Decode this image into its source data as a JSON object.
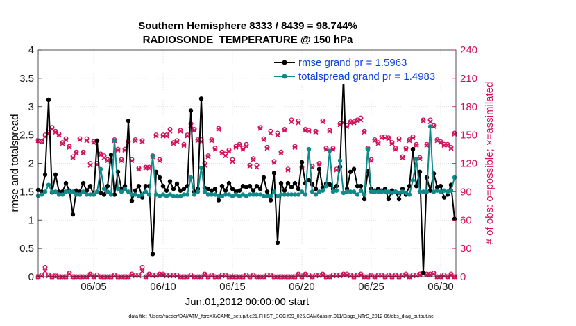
{
  "chart_data": {
    "type": "line",
    "title_line1": "Southern Hemisphere 8333 / 8439 = 98.744%",
    "title_line2": "RADIOSONDE_TEMPERATURE @ 150 hPa",
    "xlabel": "Jun.01,2012 00:00:00 start",
    "ylabel": "rmse and totalspread",
    "ylabel_right": "# of obs: o=possible; ×=assimilated",
    "footer": "data file: /Users/raeder/DAI/ATM_forcXX/CAM6_setup/f.e21.FHIST_BGC.f09_025.CAM6assim.011/Diags_NTrS_2012-06/obs_diag_output.nc",
    "xlim": [
      1.0,
      31.1
    ],
    "ylim": [
      0,
      4
    ],
    "ylim_right": [
      0,
      240
    ],
    "grid": true,
    "legend_position": "top-right",
    "x_ticks": [
      {
        "value": 5,
        "label": "06/05"
      },
      {
        "value": 10,
        "label": "06/10"
      },
      {
        "value": 15,
        "label": "06/15"
      },
      {
        "value": 20,
        "label": "06/20"
      },
      {
        "value": 25,
        "label": "06/25"
      },
      {
        "value": 30,
        "label": "06/30"
      }
    ],
    "y_ticks_left": [
      "0",
      "0.5",
      "1",
      "1.5",
      "2",
      "2.5",
      "3",
      "3.5",
      "4"
    ],
    "y_ticks_right": [
      "0",
      "30",
      "60",
      "90",
      "120",
      "150",
      "180",
      "210",
      "240"
    ],
    "colors": {
      "rmse": "#000000",
      "spread": "#0e8a8a",
      "obs": "#d0105a",
      "legend_text": "#0b3fe0"
    },
    "x": [
      1.0,
      1.25,
      1.5,
      1.75,
      2.0,
      2.25,
      2.5,
      2.75,
      3.0,
      3.25,
      3.5,
      3.75,
      4.0,
      4.25,
      4.5,
      4.75,
      5.0,
      5.25,
      5.5,
      5.75,
      6.0,
      6.25,
      6.5,
      6.75,
      7.0,
      7.25,
      7.5,
      7.75,
      8.0,
      8.25,
      8.5,
      8.75,
      9.0,
      9.25,
      9.5,
      9.75,
      10.0,
      10.25,
      10.5,
      10.75,
      11.0,
      11.25,
      11.5,
      11.75,
      12.0,
      12.25,
      12.5,
      12.75,
      13.0,
      13.25,
      13.5,
      13.75,
      14.0,
      14.25,
      14.5,
      14.75,
      15.0,
      15.25,
      15.5,
      15.75,
      16.0,
      16.25,
      16.5,
      16.75,
      17.0,
      17.25,
      17.5,
      17.75,
      18.0,
      18.25,
      18.5,
      18.75,
      19.0,
      19.25,
      19.5,
      19.75,
      20.0,
      20.25,
      20.5,
      20.75,
      21.0,
      21.25,
      21.5,
      21.75,
      22.0,
      22.25,
      22.5,
      22.75,
      23.0,
      23.25,
      23.5,
      23.75,
      24.0,
      24.25,
      24.5,
      24.75,
      25.0,
      25.25,
      25.5,
      25.75,
      26.0,
      26.25,
      26.5,
      26.75,
      27.0,
      27.25,
      27.5,
      27.75,
      28.0,
      28.25,
      28.5,
      28.75,
      29.0,
      29.25,
      29.5,
      29.75,
      30.0,
      30.25,
      30.5,
      30.75,
      31.0
    ],
    "series": [
      {
        "name": "rmse grand pr = 1.5963",
        "values": [
          1.53,
          1.5,
          1.8,
          3.12,
          1.49,
          1.8,
          1.5,
          1.5,
          1.65,
          1.52,
          1.1,
          1.52,
          1.5,
          1.65,
          1.52,
          1.6,
          1.45,
          2.4,
          1.48,
          1.45,
          1.6,
          2.15,
          1.45,
          1.85,
          1.55,
          1.6,
          2.75,
          1.34,
          1.52,
          1.6,
          1.4,
          1.6,
          1.6,
          0.4,
          1.85,
          1.75,
          1.6,
          1.52,
          1.68,
          1.55,
          1.64,
          1.52,
          1.55,
          1.6,
          2.93,
          1.5,
          1.55,
          3.14,
          1.57,
          1.55,
          1.52,
          1.55,
          1.35,
          1.6,
          1.52,
          1.65,
          1.55,
          1.5,
          1.52,
          1.6,
          1.58,
          1.6,
          1.52,
          1.6,
          1.55,
          1.75,
          1.5,
          1.35,
          1.83,
          0.6,
          1.65,
          1.52,
          1.65,
          1.58,
          1.65,
          1.55,
          2.02,
          1.65,
          1.7,
          1.63,
          1.55,
          1.9,
          1.57,
          1.64,
          1.63,
          1.55,
          1.6,
          1.94,
          3.53,
          1.55,
          1.85,
          1.9,
          1.6,
          1.6,
          1.37,
          1.86,
          1.55,
          1.52,
          1.55,
          1.52,
          1.55,
          1.37,
          1.52,
          1.5,
          1.37,
          1.55,
          1.45,
          1.6,
          2.25,
          1.6,
          1.85,
          0.07,
          1.75,
          1.52,
          1.82,
          1.58,
          1.6,
          1.4,
          1.45,
          1.62,
          1.02
        ]
      },
      {
        "name": "totalspread grand pr = 1.4983",
        "values": [
          1.43,
          1.45,
          1.5,
          1.62,
          1.5,
          1.5,
          1.45,
          1.45,
          1.5,
          1.5,
          1.5,
          1.45,
          1.45,
          1.5,
          1.45,
          1.45,
          1.45,
          1.5,
          1.9,
          1.55,
          1.5,
          1.45,
          2.4,
          1.55,
          1.5,
          1.55,
          1.5,
          1.45,
          1.45,
          1.42,
          1.45,
          1.5,
          1.45,
          2.13,
          1.45,
          1.42,
          1.45,
          1.42,
          1.45,
          1.42,
          1.42,
          1.42,
          1.45,
          1.45,
          1.75,
          1.45,
          1.5,
          1.92,
          1.5,
          1.45,
          1.45,
          1.45,
          1.42,
          1.42,
          1.45,
          1.45,
          1.42,
          1.45,
          1.42,
          1.45,
          1.42,
          1.45,
          1.45,
          1.45,
          1.45,
          1.42,
          1.42,
          1.42,
          1.5,
          1.42,
          1.45,
          1.45,
          1.45,
          1.45,
          1.45,
          1.45,
          1.5,
          1.45,
          2.25,
          1.5,
          1.45,
          1.5,
          1.52,
          1.6,
          2.22,
          1.5,
          1.52,
          2.05,
          1.48,
          1.5,
          1.5,
          1.5,
          1.45,
          1.52,
          1.45,
          2.25,
          1.5,
          1.5,
          1.5,
          1.5,
          1.5,
          1.5,
          1.48,
          1.5,
          1.48,
          1.5,
          1.48,
          1.45,
          1.7,
          2.08,
          1.5,
          1.5,
          1.5,
          2.65,
          1.5,
          1.52,
          1.5,
          1.52,
          1.5,
          1.52,
          1.75
        ]
      },
      {
        "name": "obs possible (o)",
        "axis": "right",
        "values": [
          144,
          143,
          150,
          153,
          158,
          154,
          151,
          142,
          146,
          138,
          127,
          132,
          146,
          132,
          146,
          120,
          143,
          120,
          130,
          128,
          124,
          123,
          145,
          135,
          124,
          135,
          143,
          124,
          145,
          115,
          144,
          116,
          116,
          128,
          150,
          124,
          150,
          150,
          156,
          142,
          144,
          155,
          140,
          150,
          162,
          156,
          145,
          145,
          120,
          128,
          145,
          136,
          157,
          132,
          130,
          134,
          124,
          138,
          140,
          136,
          140,
          118,
          125,
          118,
          158,
          146,
          137,
          154,
          122,
          152,
          132,
          156,
          114,
          166,
          138,
          165,
          116,
          156,
          155,
          117,
          154,
          120,
          165,
          136,
          155,
          136,
          114,
          162,
          165,
          160,
          164,
          164,
          166,
          168,
          154,
          136,
          124,
          145,
          142,
          148,
          148,
          147,
          142,
          136,
          146,
          127,
          136,
          145,
          148,
          140,
          126,
          166,
          140,
          166,
          160,
          145,
          143,
          140,
          140,
          137,
          152
        ]
      },
      {
        "name": "obs assimilated (x)",
        "axis": "right",
        "values": [
          144,
          143,
          148,
          152,
          156,
          153,
          150,
          141,
          145,
          137,
          126,
          131,
          145,
          131,
          144,
          118,
          142,
          119,
          129,
          126,
          123,
          122,
          144,
          134,
          123,
          134,
          142,
          123,
          144,
          114,
          143,
          115,
          115,
          127,
          149,
          123,
          149,
          149,
          154,
          141,
          143,
          154,
          139,
          149,
          160,
          155,
          144,
          143,
          118,
          127,
          144,
          135,
          156,
          131,
          128,
          133,
          122,
          137,
          139,
          135,
          138,
          117,
          124,
          116,
          157,
          145,
          136,
          152,
          121,
          150,
          131,
          155,
          113,
          164,
          137,
          163,
          115,
          155,
          154,
          116,
          153,
          119,
          164,
          135,
          154,
          135,
          113,
          161,
          163,
          159,
          163,
          163,
          165,
          166,
          153,
          135,
          123,
          144,
          141,
          147,
          147,
          146,
          141,
          135,
          145,
          126,
          135,
          144,
          147,
          139,
          125,
          165,
          139,
          164,
          159,
          144,
          142,
          139,
          139,
          136,
          151
        ]
      },
      {
        "name": "obs possible low (o)",
        "axis": "right",
        "values": [
          0,
          2,
          10,
          2,
          0,
          1,
          0,
          0,
          0,
          4,
          0,
          0,
          0,
          0,
          0,
          3,
          0,
          2,
          0,
          0,
          0,
          0,
          2,
          0,
          0,
          0,
          0,
          3,
          2,
          2,
          10,
          0,
          3,
          2,
          2,
          3,
          3,
          2,
          2,
          2,
          2,
          0,
          0,
          0,
          2,
          0,
          0,
          0,
          3,
          0,
          2,
          0,
          0,
          2,
          2,
          0,
          0,
          0,
          0,
          0,
          2,
          0,
          2,
          0,
          0,
          0,
          2,
          2,
          0,
          0,
          0,
          0,
          0,
          0,
          0,
          3,
          0,
          3,
          2,
          0,
          2,
          2,
          3,
          0,
          0,
          2,
          2,
          2,
          3,
          3,
          2,
          0,
          2,
          3,
          0,
          0,
          2,
          0,
          2,
          2,
          0,
          2,
          0,
          2,
          0,
          2,
          3,
          0,
          2,
          2,
          3,
          4,
          3,
          3,
          4,
          0,
          0,
          2,
          0,
          3,
          0
        ]
      },
      {
        "name": "obs assimilated low (x)",
        "axis": "right",
        "values": [
          0,
          1,
          6,
          1,
          0,
          1,
          0,
          0,
          0,
          3,
          0,
          0,
          0,
          0,
          0,
          2,
          0,
          1,
          0,
          0,
          0,
          0,
          1,
          0,
          0,
          0,
          0,
          2,
          1,
          1,
          6,
          0,
          2,
          1,
          1,
          2,
          2,
          1,
          1,
          1,
          1,
          0,
          0,
          0,
          1,
          0,
          0,
          0,
          2,
          0,
          1,
          0,
          0,
          1,
          1,
          0,
          0,
          0,
          0,
          0,
          1,
          0,
          1,
          0,
          0,
          0,
          1,
          1,
          0,
          0,
          0,
          0,
          0,
          0,
          0,
          2,
          0,
          2,
          1,
          0,
          1,
          1,
          2,
          0,
          0,
          1,
          1,
          1,
          2,
          2,
          1,
          0,
          1,
          2,
          0,
          0,
          1,
          0,
          1,
          1,
          0,
          1,
          0,
          1,
          0,
          1,
          2,
          0,
          1,
          1,
          2,
          3,
          2,
          2,
          3,
          0,
          0,
          1,
          0,
          2,
          0
        ]
      }
    ]
  }
}
